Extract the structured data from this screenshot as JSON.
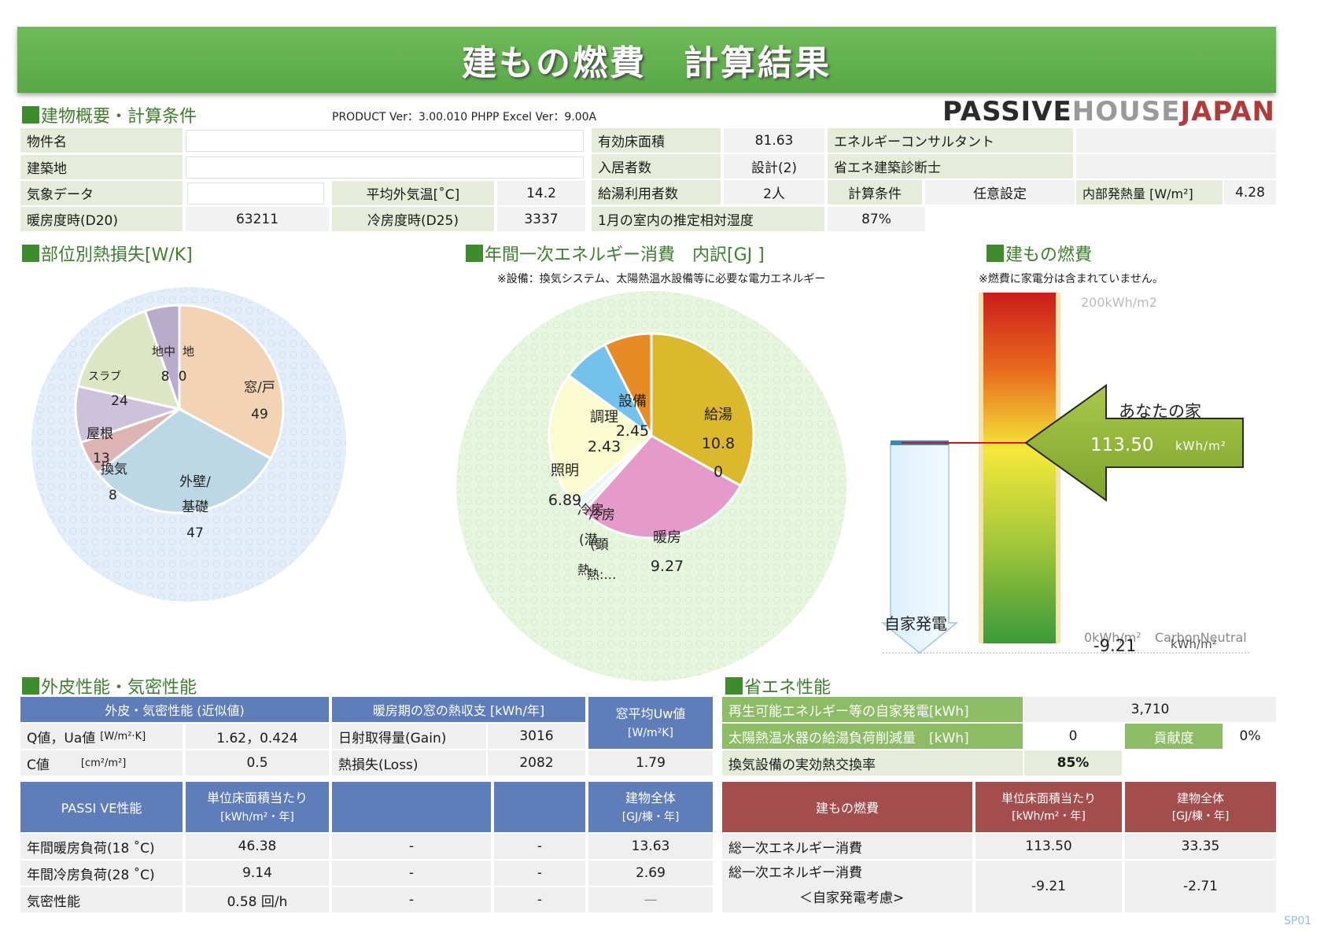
{
  "header": {
    "title": "建もの燃費　計算結果",
    "version": "PRODUCT Ver：3.00.010  PHPP Excel Ver：9.00A",
    "page_code": "SP01"
  },
  "logo": {
    "part1": "PASSIVE",
    "part2": "HOUSE",
    "part3": "JAPAN"
  },
  "sections": {
    "overview": "建物概要・計算条件",
    "heatloss": "部位別熱損失[W/K]",
    "energy": "年間一次エネルギー消費　内訳[GJ ]",
    "energy_note": "※設備：換気システム、太陽熱温水設備等に必要な電力エネルギー",
    "fuel": "建もの燃費",
    "fuel_note": "※燃費に家電分は含まれていません。",
    "envelope": "外皮性能・気密性能",
    "saving": "省エネ性能"
  },
  "overview": {
    "property_label": "物件名",
    "property_value": "",
    "site_label": "建築地",
    "site_value": "",
    "climate_label": "気象データ",
    "climate_value": "",
    "avg_temp_label": "平均外気温[˚C]",
    "avg_temp_value": "14.2",
    "hdd_label": "暖房度時(D20)",
    "hdd_value": "63211",
    "cdd_label": "冷房度時(D25)",
    "cdd_value": "3337",
    "floor_label": "有効床面積",
    "floor_value": "81.63",
    "occupants_label": "入居者数",
    "occupants_value": "設計(2)",
    "hotwater_label": "給湯利用者数",
    "hotwater_value": "2人",
    "humidity_label": "1月の室内の推定相対湿度",
    "humidity_value": "87%",
    "consultant_label": "エネルギーコンサルタント",
    "consultant_value": "",
    "diagnostician_label": "省エネ建築診断士",
    "diagnostician_value": "",
    "calc_label": "計算条件",
    "calc_value": "任意設定",
    "internal_label": "内部発熱量 [W/m²]",
    "internal_value": "4.28"
  },
  "heatloss_pie": {
    "slices": [
      {
        "name": "窓/戸",
        "value": 49,
        "color": "#f2d4b4",
        "text": "49"
      },
      {
        "name": "外壁/基礎",
        "value": 47,
        "color": "#bcd8e6",
        "text": "47"
      },
      {
        "name": "換気",
        "value": 8,
        "color": "#dcb4b4",
        "text": "8"
      },
      {
        "name": "屋根",
        "value": 13,
        "color": "#cdc1dc",
        "text": "13"
      },
      {
        "name": "スラブ",
        "value": 24,
        "color": "#dde6c4",
        "text": "24"
      },
      {
        "name": "地中",
        "value": 8,
        "color": "#b9abcb",
        "text": "8"
      }
    ],
    "label_ground_extra": "地",
    "label_ground_extra2": "0",
    "label_wall1": "外壁/",
    "label_wall2": "基礎"
  },
  "energy_pie": {
    "slices": [
      {
        "name": "給湯",
        "value": 10.8,
        "color": "#dcb82c"
      },
      {
        "name": "暖房",
        "value": 9.27,
        "color": "#e59bca"
      },
      {
        "name": "熱源",
        "value": 0.25,
        "color": "#dff0e6"
      },
      {
        "name": "冷房",
        "value": 0.5,
        "color": "#e8f6f6"
      },
      {
        "name": "照明",
        "value": 6.89,
        "color": "#fbfbd0"
      },
      {
        "name": "調理",
        "value": 2.43,
        "color": "#72c2ec"
      },
      {
        "name": "設備",
        "value": 2.45,
        "color": "#e88b22"
      }
    ],
    "labels": {
      "kyuto": "給湯",
      "kyuto_v1": "10.8",
      "kyuto_v2": "0",
      "danbo": "暖房",
      "danbo_v": "9.27",
      "shomei": "照明",
      "shomei_v": "6.89",
      "chori": "調理",
      "chori_v": "2.43",
      "setsubi": "設備",
      "setsubi_v": "2.45",
      "reibo": "冷房",
      "reibo2": "冷房",
      "sen": "(潜",
      "ken": "(顕",
      "netsu": "熱",
      "netsu2": "熱:…"
    }
  },
  "fuel_bar": {
    "top_label": "200kWh/m2",
    "zero_label": "0kWh/m²",
    "cn_label": "CarbonNeutral",
    "arrow_title": "あなたの家",
    "arrow_value": "113.50",
    "arrow_unit": "kWh/m²",
    "selfgen_label": "自家発電",
    "selfgen_value": "-9.21",
    "selfgen_unit": "kWh/m²",
    "value": 113.5,
    "max": 200
  },
  "envelope": {
    "header1": "外皮・気密性能 (近似値)",
    "header2": "暖房期の窓の熱収支 [kWh/年]",
    "header3a": "窓平均Uw値",
    "header3b": "[W/m²K]",
    "q_label": "Q値，Ua値",
    "q_unit": "[W/m²·K]",
    "q_value": "1.62，0.424",
    "c_label": "C値",
    "c_unit": "[cm²/m²]",
    "c_value": "0.5",
    "gain_label": "日射取得量(Gain)",
    "gain_value": "3016",
    "loss_label": "熱損失(Loss)",
    "loss_value": "2082",
    "uw_value": "1.79"
  },
  "passive": {
    "h1": "PASSI VE性能",
    "h2a": "単位床面積当たり",
    "h2b": "[kWh/m²・年]",
    "h5a": "建物全体",
    "h5b": "[GJ/棟・年]",
    "rows": [
      {
        "label": "年間暖房負荷(18 ˚C)",
        "unit": "46.38",
        "c3": "-",
        "c4": "-",
        "total": "13.63"
      },
      {
        "label": "年間冷房負荷(28 ˚C)",
        "unit": "9.14",
        "c3": "-",
        "c4": "-",
        "total": "2.69"
      },
      {
        "label": "気密性能",
        "unit": "0.58 回/h",
        "c3": "-",
        "c4": "-",
        "total": "—"
      }
    ]
  },
  "saving": {
    "renew_label": "再生可能エネルギー等の自家発電[kWh]",
    "renew_value": "3,710",
    "solar_label": "太陽熱温水器の給湯負荷削減量　[kWh]",
    "solar_value": "0",
    "contrib_label": "貢献度",
    "contrib_value": "0%",
    "vent_label": "換気設備の実効熱交換率",
    "vent_value": "85%"
  },
  "fuel_table": {
    "h1": "建もの燃費",
    "h2a": "単位床面積当たり",
    "h2b": "[kWh/m²・年]",
    "h3a": "建物全体",
    "h3b": "[GJ/棟・年]",
    "r1_label": "総一次エネルギー消費",
    "r1_unit": "113.50",
    "r1_total": "33.35",
    "r2_label1": "総一次エネルギー消費",
    "r2_label2": "＜自家発電考慮>",
    "r2_unit": "-9.21",
    "r2_total": "-2.71"
  }
}
